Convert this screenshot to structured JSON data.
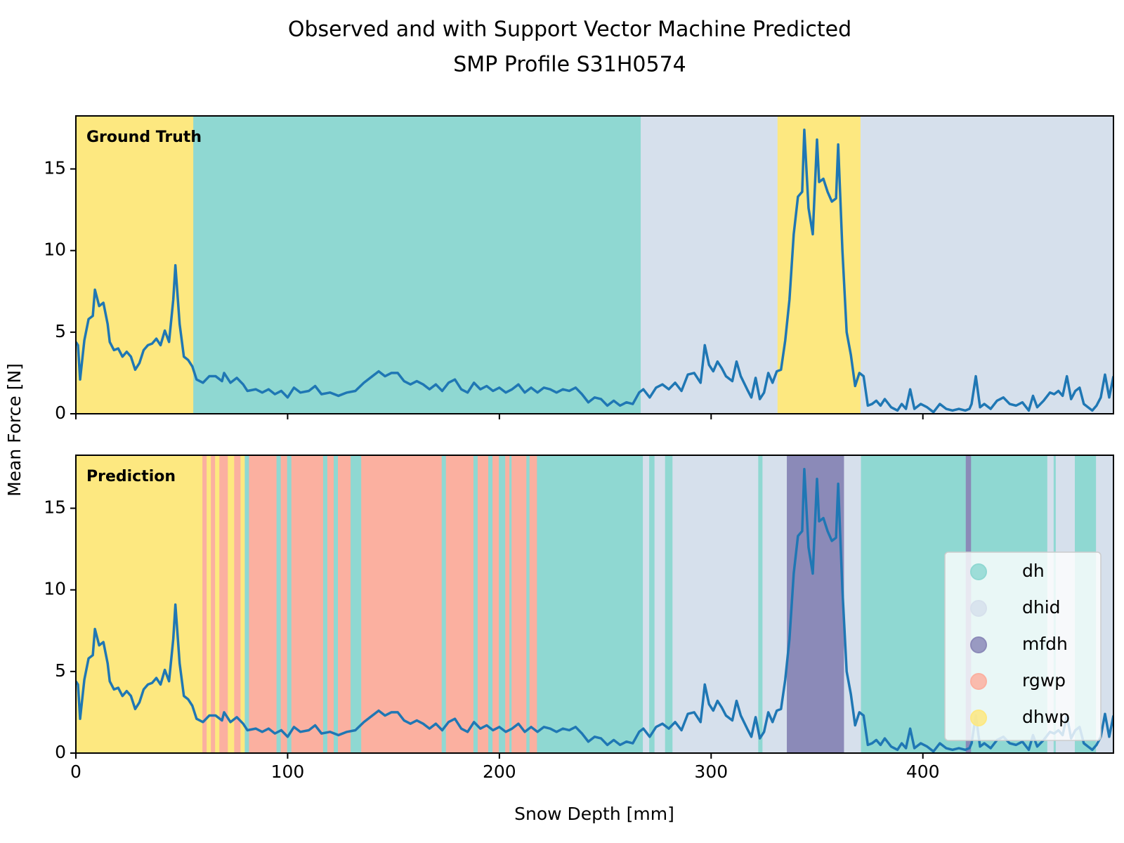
{
  "title_lines": [
    "Observed and with Support Vector Machine Predicted",
    "SMP Profile S31H0574"
  ],
  "xlabel": "Snow Depth [mm]",
  "ylabel": "Mean Force [N]",
  "chart_data": [
    {
      "type": "line",
      "label": "Ground Truth",
      "color": "#1f77b4",
      "xlim": [
        0,
        490
      ],
      "ylim": [
        0,
        18.25
      ],
      "yticks": [
        0,
        5,
        10,
        15
      ],
      "x": [
        0,
        1,
        2,
        4,
        6,
        8,
        9,
        11,
        13,
        15,
        16,
        18,
        20,
        22,
        24,
        26,
        28,
        30,
        32,
        34,
        36,
        38,
        40,
        42,
        44,
        46,
        47,
        49,
        51,
        53,
        55,
        57,
        60,
        63,
        66,
        69,
        70,
        73,
        76,
        79,
        81,
        85,
        88,
        91,
        94,
        97,
        100,
        103,
        106,
        110,
        113,
        116,
        120,
        124,
        128,
        132,
        136,
        140,
        143,
        146,
        149,
        152,
        155,
        158,
        161,
        164,
        167,
        170,
        173,
        176,
        179,
        182,
        185,
        188,
        191,
        194,
        197,
        200,
        203,
        206,
        209,
        212,
        215,
        218,
        221,
        224,
        227,
        230,
        233,
        236,
        239,
        242,
        245,
        248,
        251,
        254,
        257,
        260,
        263,
        266,
        268,
        271,
        274,
        277,
        280,
        283,
        286,
        289,
        292,
        295,
        296,
        297,
        299,
        301,
        303,
        305,
        307,
        310,
        312,
        314,
        317,
        319,
        321,
        323,
        325,
        327,
        329,
        331,
        333,
        335,
        337,
        339,
        341,
        343,
        344,
        346,
        348,
        350,
        351,
        353,
        355,
        357,
        359,
        360,
        362,
        364,
        366,
        368,
        370,
        372,
        374,
        376,
        378,
        380,
        382,
        385,
        388,
        390,
        392,
        394,
        396,
        399,
        402,
        405,
        408,
        411,
        414,
        417,
        420,
        422,
        423,
        425,
        427,
        429,
        432,
        435,
        438,
        441,
        444,
        447,
        450,
        452,
        454,
        457,
        460,
        462,
        464,
        466,
        468,
        470,
        472,
        474,
        476,
        478,
        480,
        482,
        484,
        486,
        488,
        490
      ],
      "values": [
        4.4,
        4.2,
        2.1,
        4.5,
        5.8,
        6.0,
        7.6,
        6.6,
        6.8,
        5.5,
        4.4,
        3.9,
        4.0,
        3.5,
        3.8,
        3.5,
        2.7,
        3.1,
        3.9,
        4.2,
        4.3,
        4.6,
        4.2,
        5.1,
        4.4,
        7.0,
        9.1,
        5.5,
        3.5,
        3.3,
        2.9,
        2.1,
        1.9,
        2.3,
        2.3,
        2.0,
        2.5,
        1.9,
        2.2,
        1.8,
        1.4,
        1.5,
        1.3,
        1.5,
        1.2,
        1.4,
        1.0,
        1.6,
        1.3,
        1.4,
        1.7,
        1.2,
        1.3,
        1.1,
        1.3,
        1.4,
        1.9,
        2.3,
        2.6,
        2.3,
        2.5,
        2.5,
        2.0,
        1.8,
        2.0,
        1.8,
        1.5,
        1.8,
        1.4,
        1.9,
        2.1,
        1.5,
        1.3,
        1.9,
        1.5,
        1.7,
        1.4,
        1.6,
        1.3,
        1.5,
        1.8,
        1.3,
        1.6,
        1.3,
        1.6,
        1.5,
        1.3,
        1.5,
        1.4,
        1.6,
        1.2,
        0.7,
        1.0,
        0.9,
        0.5,
        0.8,
        0.5,
        0.7,
        0.6,
        1.3,
        1.5,
        1.0,
        1.6,
        1.8,
        1.5,
        1.9,
        1.4,
        2.4,
        2.5,
        1.9,
        3.0,
        4.2,
        3.0,
        2.6,
        3.2,
        2.8,
        2.3,
        2.0,
        3.2,
        2.3,
        1.5,
        1.0,
        2.2,
        0.9,
        1.3,
        2.5,
        1.9,
        2.6,
        2.7,
        4.5,
        7.0,
        11.0,
        13.3,
        13.6,
        17.4,
        12.6,
        11.0,
        16.8,
        14.2,
        14.4,
        13.6,
        13.0,
        13.2,
        16.5,
        10.0,
        5.0,
        3.6,
        1.7,
        2.5,
        2.3,
        0.5,
        0.6,
        0.8,
        0.5,
        0.9,
        0.4,
        0.2,
        0.6,
        0.3,
        1.5,
        0.3,
        0.6,
        0.4,
        0.1,
        0.6,
        0.3,
        0.2,
        0.3,
        0.2,
        0.3,
        0.6,
        2.3,
        0.4,
        0.6,
        0.3,
        0.8,
        1.0,
        0.6,
        0.5,
        0.7,
        0.2,
        1.1,
        0.4,
        0.8,
        1.3,
        1.2,
        1.4,
        1.1,
        2.3,
        0.9,
        1.4,
        1.6,
        0.6,
        0.4,
        0.2,
        0.5,
        1.0,
        2.4,
        1.0,
        2.3
      ],
      "bands": [
        {
          "start": 0,
          "end": 55.7,
          "class": "dhwp"
        },
        {
          "start": 55.7,
          "end": 267,
          "class": "dh"
        },
        {
          "start": 267,
          "end": 331.6,
          "class": "dhid"
        },
        {
          "start": 331.6,
          "end": 370.8,
          "class": "dhwp"
        },
        {
          "start": 370.8,
          "end": 490,
          "class": "dhid"
        }
      ]
    },
    {
      "type": "line",
      "label": "Prediction",
      "color": "#1f77b4",
      "xlim": [
        0,
        490
      ],
      "ylim": [
        0,
        18.25
      ],
      "yticks": [
        0,
        5,
        10,
        15
      ],
      "xticks": [
        0,
        100,
        200,
        300,
        400
      ],
      "legend_loc": "lower right",
      "legend": [
        {
          "name": "dh",
          "color": "#8fd8d2"
        },
        {
          "name": "dhid",
          "color": "#d6e0ec"
        },
        {
          "name": "mfdh",
          "color": "#8b8ab8"
        },
        {
          "name": "rgwp",
          "color": "#fbb0a0"
        },
        {
          "name": "dhwp",
          "color": "#fde880"
        }
      ],
      "x": [
        0,
        1,
        2,
        4,
        6,
        8,
        9,
        11,
        13,
        15,
        16,
        18,
        20,
        22,
        24,
        26,
        28,
        30,
        32,
        34,
        36,
        38,
        40,
        42,
        44,
        46,
        47,
        49,
        51,
        53,
        55,
        57,
        60,
        63,
        66,
        69,
        70,
        73,
        76,
        79,
        81,
        85,
        88,
        91,
        94,
        97,
        100,
        103,
        106,
        110,
        113,
        116,
        120,
        124,
        128,
        132,
        136,
        140,
        143,
        146,
        149,
        152,
        155,
        158,
        161,
        164,
        167,
        170,
        173,
        176,
        179,
        182,
        185,
        188,
        191,
        194,
        197,
        200,
        203,
        206,
        209,
        212,
        215,
        218,
        221,
        224,
        227,
        230,
        233,
        236,
        239,
        242,
        245,
        248,
        251,
        254,
        257,
        260,
        263,
        266,
        268,
        271,
        274,
        277,
        280,
        283,
        286,
        289,
        292,
        295,
        296,
        297,
        299,
        301,
        303,
        305,
        307,
        310,
        312,
        314,
        317,
        319,
        321,
        323,
        325,
        327,
        329,
        331,
        333,
        335,
        337,
        339,
        341,
        343,
        344,
        346,
        348,
        350,
        351,
        353,
        355,
        357,
        359,
        360,
        362,
        364,
        366,
        368,
        370,
        372,
        374,
        376,
        378,
        380,
        382,
        385,
        388,
        390,
        392,
        394,
        396,
        399,
        402,
        405,
        408,
        411,
        414,
        417,
        420,
        422,
        423,
        425,
        427,
        429,
        432,
        435,
        438,
        441,
        444,
        447,
        450,
        452,
        454,
        457,
        460,
        462,
        464,
        466,
        468,
        470,
        472,
        474,
        476,
        478,
        480,
        482,
        484,
        486,
        488,
        490
      ],
      "values": [
        4.4,
        4.2,
        2.1,
        4.5,
        5.8,
        6.0,
        7.6,
        6.6,
        6.8,
        5.5,
        4.4,
        3.9,
        4.0,
        3.5,
        3.8,
        3.5,
        2.7,
        3.1,
        3.9,
        4.2,
        4.3,
        4.6,
        4.2,
        5.1,
        4.4,
        7.0,
        9.1,
        5.5,
        3.5,
        3.3,
        2.9,
        2.1,
        1.9,
        2.3,
        2.3,
        2.0,
        2.5,
        1.9,
        2.2,
        1.8,
        1.4,
        1.5,
        1.3,
        1.5,
        1.2,
        1.4,
        1.0,
        1.6,
        1.3,
        1.4,
        1.7,
        1.2,
        1.3,
        1.1,
        1.3,
        1.4,
        1.9,
        2.3,
        2.6,
        2.3,
        2.5,
        2.5,
        2.0,
        1.8,
        2.0,
        1.8,
        1.5,
        1.8,
        1.4,
        1.9,
        2.1,
        1.5,
        1.3,
        1.9,
        1.5,
        1.7,
        1.4,
        1.6,
        1.3,
        1.5,
        1.8,
        1.3,
        1.6,
        1.3,
        1.6,
        1.5,
        1.3,
        1.5,
        1.4,
        1.6,
        1.2,
        0.7,
        1.0,
        0.9,
        0.5,
        0.8,
        0.5,
        0.7,
        0.6,
        1.3,
        1.5,
        1.0,
        1.6,
        1.8,
        1.5,
        1.9,
        1.4,
        2.4,
        2.5,
        1.9,
        3.0,
        4.2,
        3.0,
        2.6,
        3.2,
        2.8,
        2.3,
        2.0,
        3.2,
        2.3,
        1.5,
        1.0,
        2.2,
        0.9,
        1.3,
        2.5,
        1.9,
        2.6,
        2.7,
        4.5,
        7.0,
        11.0,
        13.3,
        13.6,
        17.4,
        12.6,
        11.0,
        16.8,
        14.2,
        14.4,
        13.6,
        13.0,
        13.2,
        16.5,
        10.0,
        5.0,
        3.6,
        1.7,
        2.5,
        2.3,
        0.5,
        0.6,
        0.8,
        0.5,
        0.9,
        0.4,
        0.2,
        0.6,
        0.3,
        1.5,
        0.3,
        0.6,
        0.4,
        0.1,
        0.6,
        0.3,
        0.2,
        0.3,
        0.2,
        0.3,
        0.6,
        2.3,
        0.4,
        0.6,
        0.3,
        0.8,
        1.0,
        0.6,
        0.5,
        0.7,
        0.2,
        1.1,
        0.4,
        0.8,
        1.3,
        1.2,
        1.4,
        1.1,
        2.3,
        0.9,
        1.4,
        1.6,
        0.6,
        0.4,
        0.2,
        0.5,
        1.0,
        2.4,
        1.0,
        2.3
      ],
      "bands": [
        {
          "start": 0,
          "end": 60,
          "class": "dhwp"
        },
        {
          "start": 60,
          "end": 62,
          "class": "rgwp"
        },
        {
          "start": 62,
          "end": 64,
          "class": "dhwp"
        },
        {
          "start": 64,
          "end": 66,
          "class": "rgwp"
        },
        {
          "start": 66,
          "end": 68,
          "class": "dhwp"
        },
        {
          "start": 68,
          "end": 72,
          "class": "rgwp"
        },
        {
          "start": 72,
          "end": 75,
          "class": "dhwp"
        },
        {
          "start": 75,
          "end": 78,
          "class": "rgwp"
        },
        {
          "start": 78,
          "end": 80,
          "class": "dhwp"
        },
        {
          "start": 80,
          "end": 82,
          "class": "dh"
        },
        {
          "start": 82,
          "end": 95,
          "class": "rgwp"
        },
        {
          "start": 95,
          "end": 97,
          "class": "dh"
        },
        {
          "start": 97,
          "end": 100,
          "class": "rgwp"
        },
        {
          "start": 100,
          "end": 102,
          "class": "dh"
        },
        {
          "start": 102,
          "end": 117,
          "class": "rgwp"
        },
        {
          "start": 117,
          "end": 119,
          "class": "dh"
        },
        {
          "start": 119,
          "end": 122,
          "class": "rgwp"
        },
        {
          "start": 122,
          "end": 124,
          "class": "dh"
        },
        {
          "start": 124,
          "end": 130,
          "class": "rgwp"
        },
        {
          "start": 130,
          "end": 135,
          "class": "dh"
        },
        {
          "start": 135,
          "end": 173,
          "class": "rgwp"
        },
        {
          "start": 173,
          "end": 175,
          "class": "dh"
        },
        {
          "start": 175,
          "end": 188,
          "class": "rgwp"
        },
        {
          "start": 188,
          "end": 190,
          "class": "dh"
        },
        {
          "start": 190,
          "end": 195,
          "class": "rgwp"
        },
        {
          "start": 195,
          "end": 197,
          "class": "dh"
        },
        {
          "start": 197,
          "end": 200,
          "class": "rgwp"
        },
        {
          "start": 200,
          "end": 203,
          "class": "dh"
        },
        {
          "start": 203,
          "end": 205,
          "class": "rgwp"
        },
        {
          "start": 205,
          "end": 206,
          "class": "dh"
        },
        {
          "start": 206,
          "end": 213,
          "class": "rgwp"
        },
        {
          "start": 213,
          "end": 214.5,
          "class": "dh"
        },
        {
          "start": 214.5,
          "end": 218,
          "class": "rgwp"
        },
        {
          "start": 218,
          "end": 268,
          "class": "dh"
        },
        {
          "start": 268,
          "end": 271,
          "class": "dhid"
        },
        {
          "start": 271,
          "end": 273.5,
          "class": "dh"
        },
        {
          "start": 273.5,
          "end": 278.5,
          "class": "dhid"
        },
        {
          "start": 278.5,
          "end": 282,
          "class": "dh"
        },
        {
          "start": 282,
          "end": 322.5,
          "class": "dhid"
        },
        {
          "start": 322.5,
          "end": 324.5,
          "class": "dh"
        },
        {
          "start": 324.5,
          "end": 336,
          "class": "dhid"
        },
        {
          "start": 336,
          "end": 363,
          "class": "mfdh"
        },
        {
          "start": 363,
          "end": 371,
          "class": "dhid"
        },
        {
          "start": 371,
          "end": 420.5,
          "class": "dh"
        },
        {
          "start": 420.5,
          "end": 423,
          "class": "mfdh"
        },
        {
          "start": 423,
          "end": 459,
          "class": "dh"
        },
        {
          "start": 459,
          "end": 462,
          "class": "dhid"
        },
        {
          "start": 462,
          "end": 463,
          "class": "dh"
        },
        {
          "start": 463,
          "end": 472,
          "class": "dhid"
        },
        {
          "start": 472,
          "end": 482,
          "class": "dh"
        },
        {
          "start": 482,
          "end": 490,
          "class": "dhid"
        }
      ]
    }
  ]
}
